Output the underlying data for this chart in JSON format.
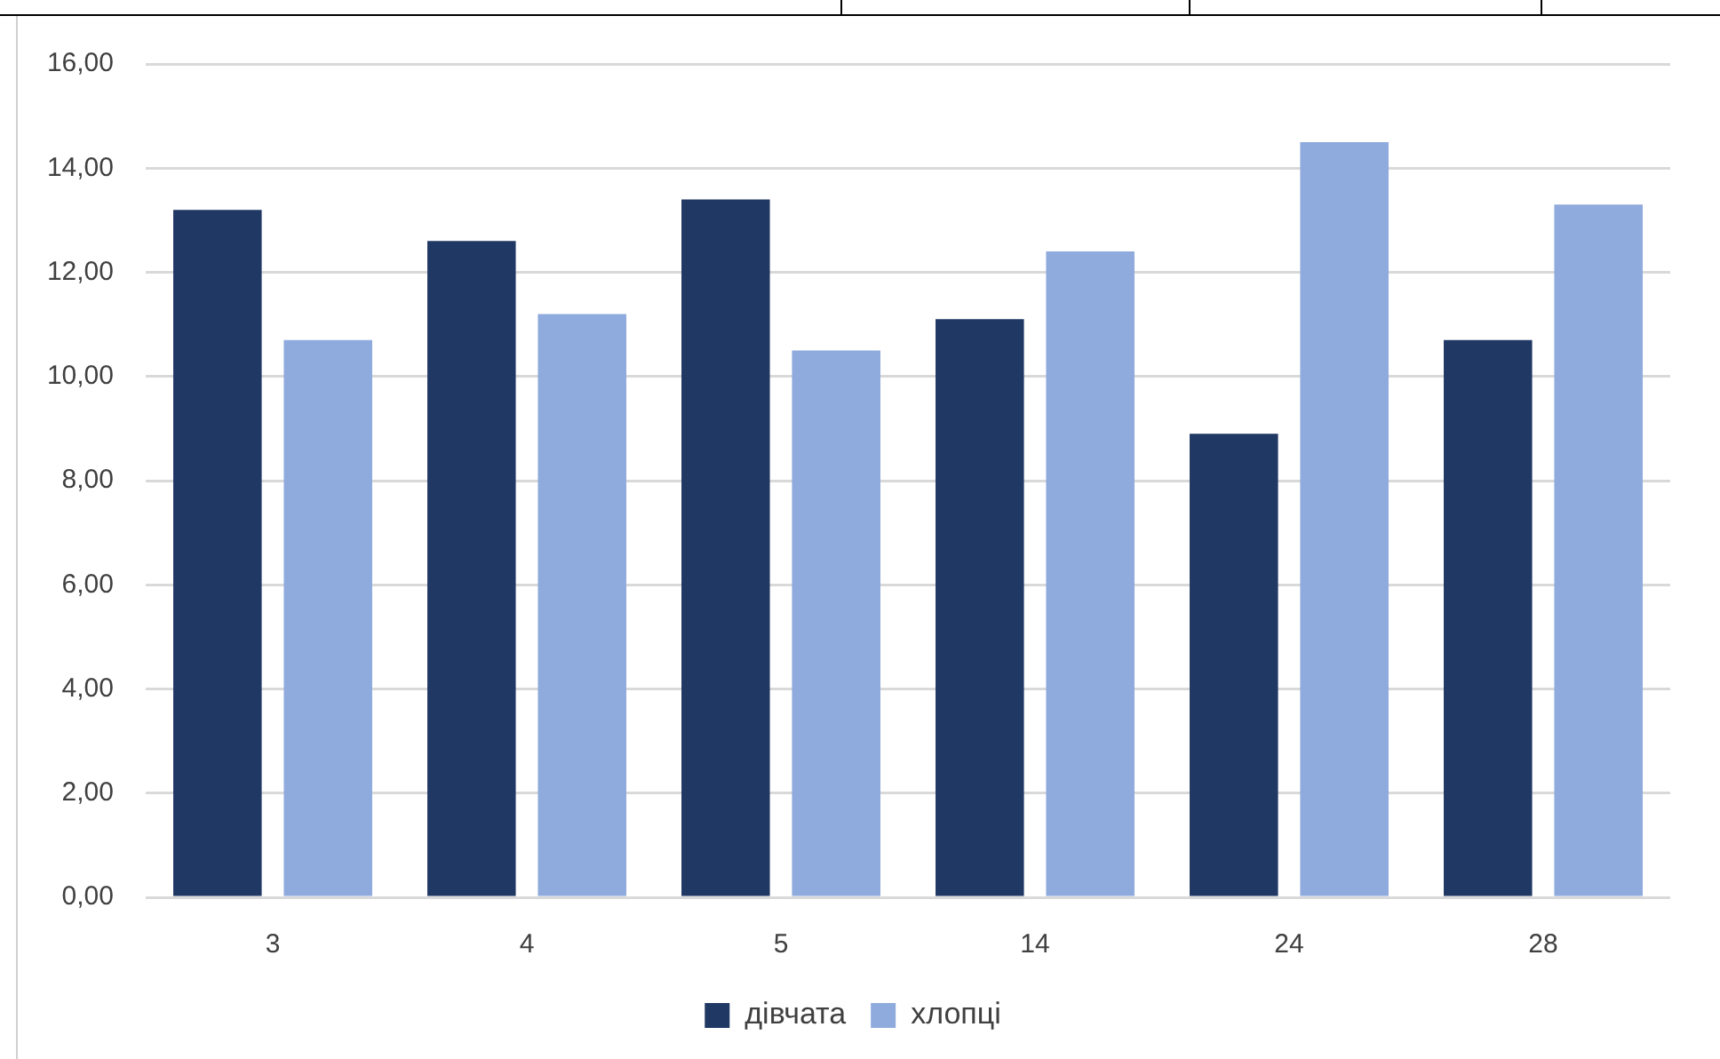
{
  "chart_data": {
    "type": "bar",
    "categories": [
      "3",
      "4",
      "5",
      "14",
      "24",
      "28"
    ],
    "series": [
      {
        "name": "дівчата",
        "color": "#203864",
        "values": [
          13.2,
          12.6,
          13.4,
          11.1,
          8.9,
          10.7
        ]
      },
      {
        "name": "хлопці",
        "color": "#8faadc",
        "values": [
          10.7,
          11.2,
          10.5,
          12.4,
          14.5,
          13.3
        ]
      }
    ],
    "ylim": [
      0,
      16
    ],
    "yticks": [
      {
        "value": 0,
        "label": "0,00"
      },
      {
        "value": 2,
        "label": "2,00"
      },
      {
        "value": 4,
        "label": "4,00"
      },
      {
        "value": 6,
        "label": "6,00"
      },
      {
        "value": 8,
        "label": "8,00"
      },
      {
        "value": 10,
        "label": "10,00"
      },
      {
        "value": 12,
        "label": "12,00"
      },
      {
        "value": 14,
        "label": "14,00"
      },
      {
        "value": 16,
        "label": "16,00"
      }
    ],
    "grid": "y",
    "legend": "bottom"
  }
}
